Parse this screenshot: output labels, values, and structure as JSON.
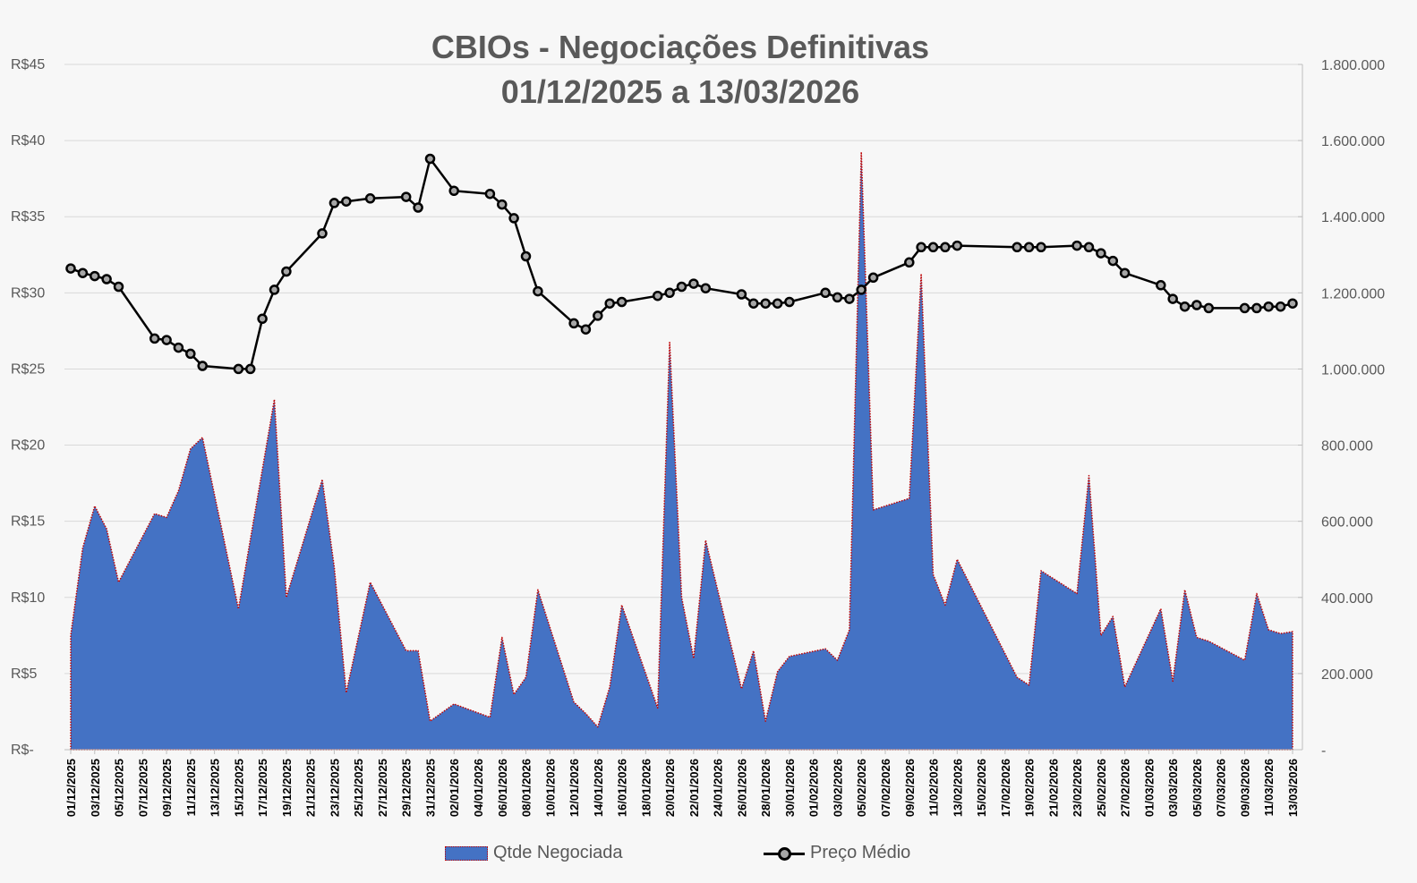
{
  "chart_data": {
    "type": "area+line",
    "title": "CBIOs - Negociações Definitivas",
    "subtitle": "01/12/2025 a 13/03/2026",
    "y_left_ticks": [
      "R$-",
      "R$5",
      "R$10",
      "R$15",
      "R$20",
      "R$25",
      "R$30",
      "R$35",
      "R$40",
      "R$45"
    ],
    "y_left_range": [
      0,
      45
    ],
    "y_right_ticks": [
      "-",
      "200.000",
      "400.000",
      "600.000",
      "800.000",
      "1.000.000",
      "1.200.000",
      "1.400.000",
      "1.600.000",
      "1.800.000"
    ],
    "y_right_range": [
      0,
      1800000
    ],
    "x_range": [
      "2025-12-01",
      "2026-03-13"
    ],
    "x_tick_labels": [
      "01/12/2025",
      "03/12/2025",
      "05/12/2025",
      "07/12/2025",
      "09/12/2025",
      "11/12/2025",
      "13/12/2025",
      "15/12/2025",
      "17/12/2025",
      "19/12/2025",
      "21/12/2025",
      "23/12/2025",
      "25/12/2025",
      "27/12/2025",
      "29/12/2025",
      "31/12/2025",
      "02/01/2026",
      "04/01/2026",
      "06/01/2026",
      "08/01/2026",
      "10/01/2026",
      "12/01/2026",
      "14/01/2026",
      "16/01/2026",
      "18/01/2026",
      "20/01/2026",
      "22/01/2026",
      "24/01/2026",
      "26/01/2026",
      "28/01/2026",
      "30/01/2026",
      "01/02/2026",
      "03/02/2026",
      "05/02/2026",
      "07/02/2026",
      "09/02/2026",
      "11/02/2026",
      "13/02/2026",
      "15/02/2026",
      "17/02/2026",
      "19/02/2026",
      "21/02/2026",
      "23/02/2026",
      "25/02/2026",
      "27/02/2026",
      "01/03/2026",
      "03/03/2026",
      "05/03/2026",
      "07/03/2026",
      "09/03/2026",
      "11/03/2026",
      "13/03/2026"
    ],
    "gridlines": true,
    "legend_position": "bottom",
    "series": [
      {
        "name": "Qtde Negociada",
        "type": "area",
        "axis": "right",
        "color": "#4472c4",
        "border_color": "#c00000",
        "points": [
          [
            "2025-12-01",
            300000
          ],
          [
            "2025-12-02",
            530000
          ],
          [
            "2025-12-03",
            640000
          ],
          [
            "2025-12-04",
            580000
          ],
          [
            "2025-12-05",
            440000
          ],
          [
            "2025-12-08",
            620000
          ],
          [
            "2025-12-09",
            610000
          ],
          [
            "2025-12-10",
            680000
          ],
          [
            "2025-12-11",
            790000
          ],
          [
            "2025-12-12",
            820000
          ],
          [
            "2025-12-15",
            370000
          ],
          [
            "2025-12-18",
            920000
          ],
          [
            "2025-12-19",
            400000
          ],
          [
            "2025-12-22",
            710000
          ],
          [
            "2025-12-23",
            480000
          ],
          [
            "2025-12-24",
            150000
          ],
          [
            "2025-12-26",
            440000
          ],
          [
            "2025-12-29",
            260000
          ],
          [
            "2025-12-30",
            260000
          ],
          [
            "2025-12-31",
            75000
          ],
          [
            "2026-01-02",
            120000
          ],
          [
            "2026-01-05",
            85000
          ],
          [
            "2026-01-06",
            295000
          ],
          [
            "2026-01-07",
            145000
          ],
          [
            "2026-01-08",
            190000
          ],
          [
            "2026-01-09",
            420000
          ],
          [
            "2026-01-12",
            125000
          ],
          [
            "2026-01-13",
            95000
          ],
          [
            "2026-01-14",
            60000
          ],
          [
            "2026-01-15",
            165000
          ],
          [
            "2026-01-16",
            380000
          ],
          [
            "2026-01-19",
            110000
          ],
          [
            "2026-01-20",
            1070000
          ],
          [
            "2026-01-21",
            400000
          ],
          [
            "2026-01-22",
            240000
          ],
          [
            "2026-01-23",
            550000
          ],
          [
            "2026-01-26",
            160000
          ],
          [
            "2026-01-27",
            260000
          ],
          [
            "2026-01-28",
            75000
          ],
          [
            "2026-01-29",
            205000
          ],
          [
            "2026-01-30",
            245000
          ],
          [
            "2026-02-02",
            265000
          ],
          [
            "2026-02-03",
            235000
          ],
          [
            "2026-02-04",
            315000
          ],
          [
            "2026-02-05",
            1570000
          ],
          [
            "2026-02-06",
            630000
          ],
          [
            "2026-02-09",
            660000
          ],
          [
            "2026-02-10",
            1250000
          ],
          [
            "2026-02-11",
            460000
          ],
          [
            "2026-02-12",
            380000
          ],
          [
            "2026-02-13",
            500000
          ],
          [
            "2026-02-18",
            190000
          ],
          [
            "2026-02-19",
            170000
          ],
          [
            "2026-02-20",
            470000
          ],
          [
            "2026-02-23",
            410000
          ],
          [
            "2026-02-24",
            720000
          ],
          [
            "2026-02-25",
            300000
          ],
          [
            "2026-02-26",
            350000
          ],
          [
            "2026-02-27",
            165000
          ],
          [
            "2026-03-02",
            370000
          ],
          [
            "2026-03-03",
            180000
          ],
          [
            "2026-03-04",
            420000
          ],
          [
            "2026-03-05",
            295000
          ],
          [
            "2026-03-06",
            285000
          ],
          [
            "2026-03-09",
            235000
          ],
          [
            "2026-03-10",
            410000
          ],
          [
            "2026-03-11",
            315000
          ],
          [
            "2026-03-12",
            305000
          ],
          [
            "2026-03-13",
            310000
          ]
        ]
      },
      {
        "name": "Preço Médio",
        "type": "line",
        "axis": "left",
        "color": "#000000",
        "marker_fill": "#a6a6a6",
        "points": [
          [
            "2025-12-01",
            31.6
          ],
          [
            "2025-12-02",
            31.3
          ],
          [
            "2025-12-03",
            31.1
          ],
          [
            "2025-12-04",
            30.9
          ],
          [
            "2025-12-05",
            30.4
          ],
          [
            "2025-12-08",
            27.0
          ],
          [
            "2025-12-09",
            26.9
          ],
          [
            "2025-12-10",
            26.4
          ],
          [
            "2025-12-11",
            26.0
          ],
          [
            "2025-12-12",
            25.2
          ],
          [
            "2025-12-15",
            25.0
          ],
          [
            "2025-12-16",
            25.0
          ],
          [
            "2025-12-17",
            28.3
          ],
          [
            "2025-12-18",
            30.2
          ],
          [
            "2025-12-19",
            31.4
          ],
          [
            "2025-12-22",
            33.9
          ],
          [
            "2025-12-23",
            35.9
          ],
          [
            "2025-12-24",
            36.0
          ],
          [
            "2025-12-26",
            36.2
          ],
          [
            "2025-12-29",
            36.3
          ],
          [
            "2025-12-30",
            35.6
          ],
          [
            "2025-12-31",
            38.8
          ],
          [
            "2026-01-02",
            36.7
          ],
          [
            "2026-01-05",
            36.5
          ],
          [
            "2026-01-06",
            35.8
          ],
          [
            "2026-01-07",
            34.9
          ],
          [
            "2026-01-08",
            32.4
          ],
          [
            "2026-01-09",
            30.1
          ],
          [
            "2026-01-12",
            28.0
          ],
          [
            "2026-01-13",
            27.6
          ],
          [
            "2026-01-14",
            28.5
          ],
          [
            "2026-01-15",
            29.3
          ],
          [
            "2026-01-16",
            29.4
          ],
          [
            "2026-01-19",
            29.8
          ],
          [
            "2026-01-20",
            30.0
          ],
          [
            "2026-01-21",
            30.4
          ],
          [
            "2026-01-22",
            30.6
          ],
          [
            "2026-01-23",
            30.3
          ],
          [
            "2026-01-26",
            29.9
          ],
          [
            "2026-01-27",
            29.3
          ],
          [
            "2026-01-28",
            29.3
          ],
          [
            "2026-01-29",
            29.3
          ],
          [
            "2026-01-30",
            29.4
          ],
          [
            "2026-02-02",
            30.0
          ],
          [
            "2026-02-03",
            29.7
          ],
          [
            "2026-02-04",
            29.6
          ],
          [
            "2026-02-05",
            30.2
          ],
          [
            "2026-02-06",
            31.0
          ],
          [
            "2026-02-09",
            32.0
          ],
          [
            "2026-02-10",
            33.0
          ],
          [
            "2026-02-11",
            33.0
          ],
          [
            "2026-02-12",
            33.0
          ],
          [
            "2026-02-13",
            33.1
          ],
          [
            "2026-02-18",
            33.0
          ],
          [
            "2026-02-19",
            33.0
          ],
          [
            "2026-02-20",
            33.0
          ],
          [
            "2026-02-23",
            33.1
          ],
          [
            "2026-02-24",
            33.0
          ],
          [
            "2026-02-25",
            32.6
          ],
          [
            "2026-02-26",
            32.1
          ],
          [
            "2026-02-27",
            31.3
          ],
          [
            "2026-03-02",
            30.5
          ],
          [
            "2026-03-03",
            29.6
          ],
          [
            "2026-03-04",
            29.1
          ],
          [
            "2026-03-05",
            29.2
          ],
          [
            "2026-03-06",
            29.0
          ],
          [
            "2026-03-09",
            29.0
          ],
          [
            "2026-03-10",
            29.0
          ],
          [
            "2026-03-11",
            29.1
          ],
          [
            "2026-03-12",
            29.1
          ],
          [
            "2026-03-13",
            29.3
          ]
        ]
      }
    ]
  }
}
